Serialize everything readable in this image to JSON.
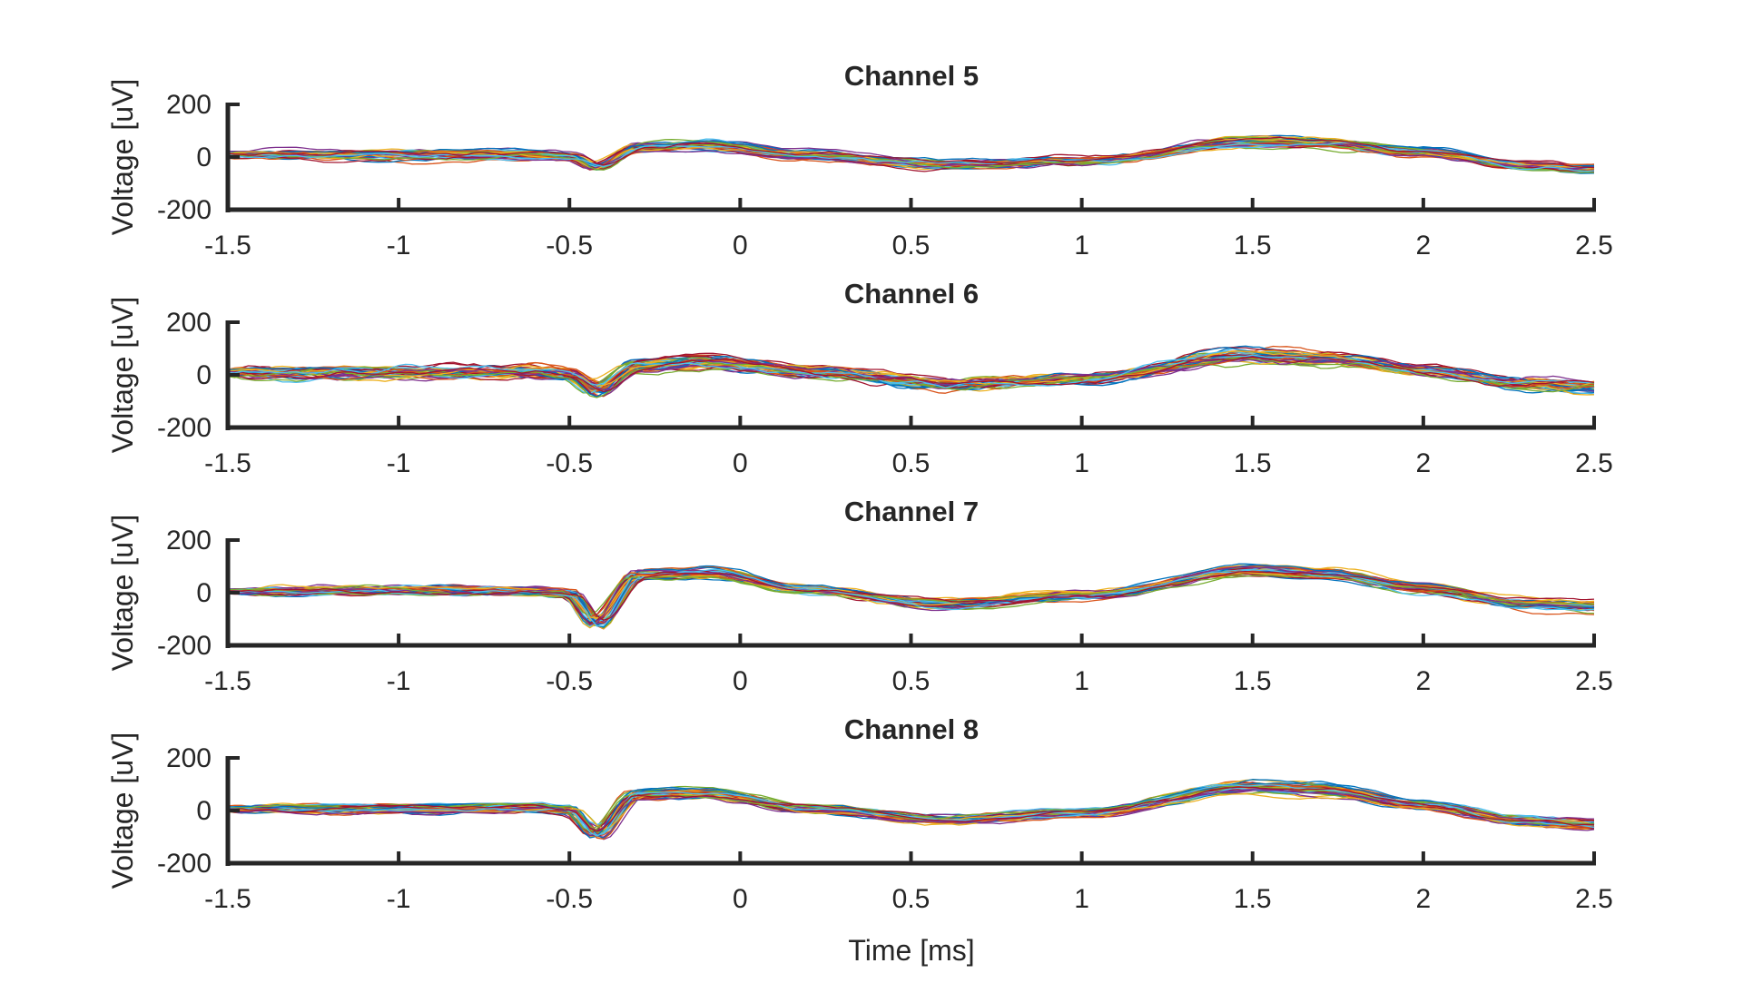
{
  "figure": {
    "xlabel": "Time [ms]"
  },
  "palette": [
    "#0072bd",
    "#d95319",
    "#edb120",
    "#7e2f8e",
    "#77ac30",
    "#4dbeee",
    "#a2142f"
  ],
  "chart_data": [
    {
      "type": "line",
      "title": "Channel 5",
      "xlabel": "",
      "ylabel": "Voltage [uV]",
      "xlim": [
        -1.5,
        2.5
      ],
      "ylim": [
        -200,
        200
      ],
      "xticks": [
        "-1.5",
        "-1",
        "-0.5",
        "0",
        "0.5",
        "1",
        "1.5",
        "2",
        "2.5"
      ],
      "yticks": [
        "200",
        "0",
        "-200"
      ],
      "grid": false,
      "mean_waveform": {
        "x": [
          -1.5,
          -0.6,
          -0.5,
          -0.42,
          -0.3,
          -0.1,
          0.2,
          0.6,
          1.0,
          1.5,
          1.7,
          2.0,
          2.3,
          2.5
        ],
        "y": [
          10,
          10,
          0,
          -40,
          35,
          45,
          10,
          -30,
          -15,
          60,
          55,
          20,
          -35,
          -45
        ]
      }
    },
    {
      "type": "line",
      "title": "Channel 6",
      "xlabel": "",
      "ylabel": "Voltage [uV]",
      "xlim": [
        -1.5,
        2.5
      ],
      "ylim": [
        -200,
        200
      ],
      "xticks": [
        "-1.5",
        "-1",
        "-0.5",
        "0",
        "0.5",
        "1",
        "1.5",
        "2",
        "2.5"
      ],
      "yticks": [
        "200",
        "0",
        "-200"
      ],
      "grid": false,
      "mean_waveform": {
        "x": [
          -1.5,
          -0.6,
          -0.5,
          -0.42,
          -0.3,
          -0.1,
          0.2,
          0.6,
          1.0,
          1.5,
          1.7,
          2.0,
          2.3,
          2.5
        ],
        "y": [
          10,
          10,
          0,
          -55,
          40,
          55,
          15,
          -35,
          -10,
          75,
          65,
          20,
          -30,
          -40
        ]
      }
    },
    {
      "type": "line",
      "title": "Channel 7",
      "xlabel": "",
      "ylabel": "Voltage [uV]",
      "xlim": [
        -1.5,
        2.5
      ],
      "ylim": [
        -200,
        200
      ],
      "xticks": [
        "-1.5",
        "-1",
        "-0.5",
        "0",
        "0.5",
        "1",
        "1.5",
        "2",
        "2.5"
      ],
      "yticks": [
        "200",
        "0",
        "-200"
      ],
      "grid": false,
      "mean_waveform": {
        "x": [
          -1.5,
          -0.6,
          -0.5,
          -0.42,
          -0.3,
          -0.1,
          0.2,
          0.6,
          1.0,
          1.5,
          1.7,
          2.0,
          2.3,
          2.5
        ],
        "y": [
          5,
          10,
          0,
          -110,
          70,
          75,
          10,
          -40,
          -10,
          85,
          75,
          20,
          -40,
          -50
        ]
      }
    },
    {
      "type": "line",
      "title": "Channel 8",
      "xlabel": "Time [ms]",
      "ylabel": "Voltage [uV]",
      "xlim": [
        -1.5,
        2.5
      ],
      "ylim": [
        -200,
        200
      ],
      "xticks": [
        "-1.5",
        "-1",
        "-0.5",
        "0",
        "0.5",
        "1",
        "1.5",
        "2",
        "2.5"
      ],
      "yticks": [
        "200",
        "0",
        "-200"
      ],
      "grid": false,
      "mean_waveform": {
        "x": [
          -1.5,
          -0.6,
          -0.5,
          -0.42,
          -0.3,
          -0.1,
          0.2,
          0.6,
          1.0,
          1.5,
          1.7,
          2.0,
          2.3,
          2.5
        ],
        "y": [
          5,
          10,
          0,
          -90,
          60,
          65,
          10,
          -35,
          -10,
          90,
          80,
          20,
          -40,
          -55
        ]
      }
    }
  ]
}
